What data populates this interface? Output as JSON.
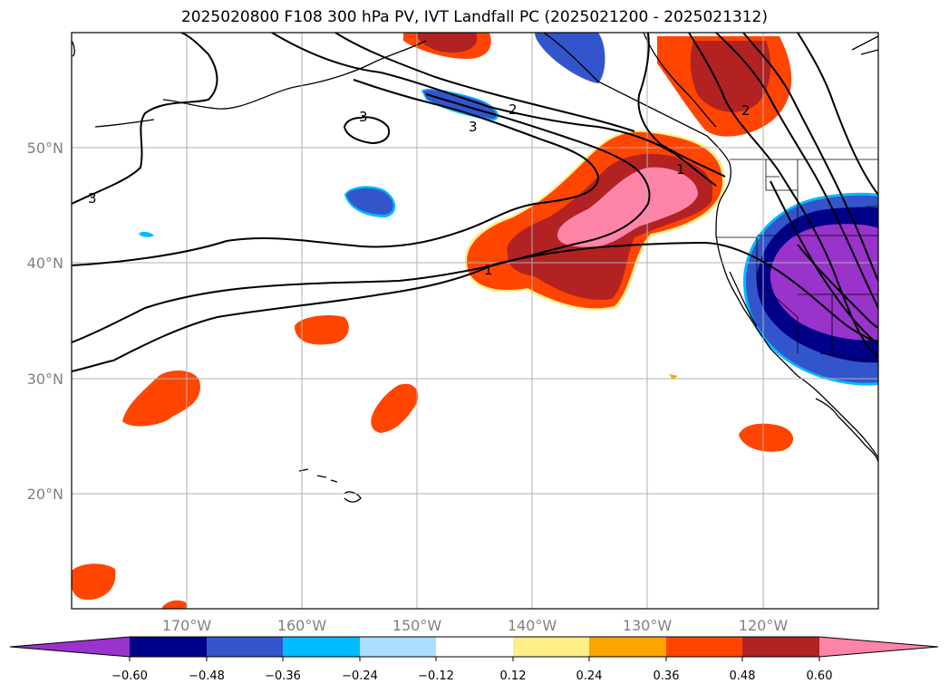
{
  "title": "2025020800 F108 300 hPa PV, IVT Landfall PC (2025021200 - 2025021312)",
  "map": {
    "lat_labels": [
      "50°N",
      "40°N",
      "30°N",
      "20°N"
    ],
    "lon_labels": [
      "170°W",
      "160°W",
      "150°W",
      "140°W",
      "130°W",
      "120°W"
    ],
    "contour_labels": [
      "3",
      "3",
      "2",
      "3",
      "1",
      "1",
      "2"
    ]
  },
  "colorbar": {
    "ticks": [
      "−0.60",
      "−0.48",
      "−0.36",
      "−0.24",
      "−0.12",
      "0.12",
      "0.24",
      "0.36",
      "0.48",
      "0.60"
    ],
    "colors": [
      "#9933cc",
      "#000088",
      "#3355cc",
      "#00bbff",
      "#aaddff",
      "#ffffff",
      "#ffee88",
      "#ffa500",
      "#ff4500",
      "#b22222",
      "#ff85a8"
    ]
  }
}
